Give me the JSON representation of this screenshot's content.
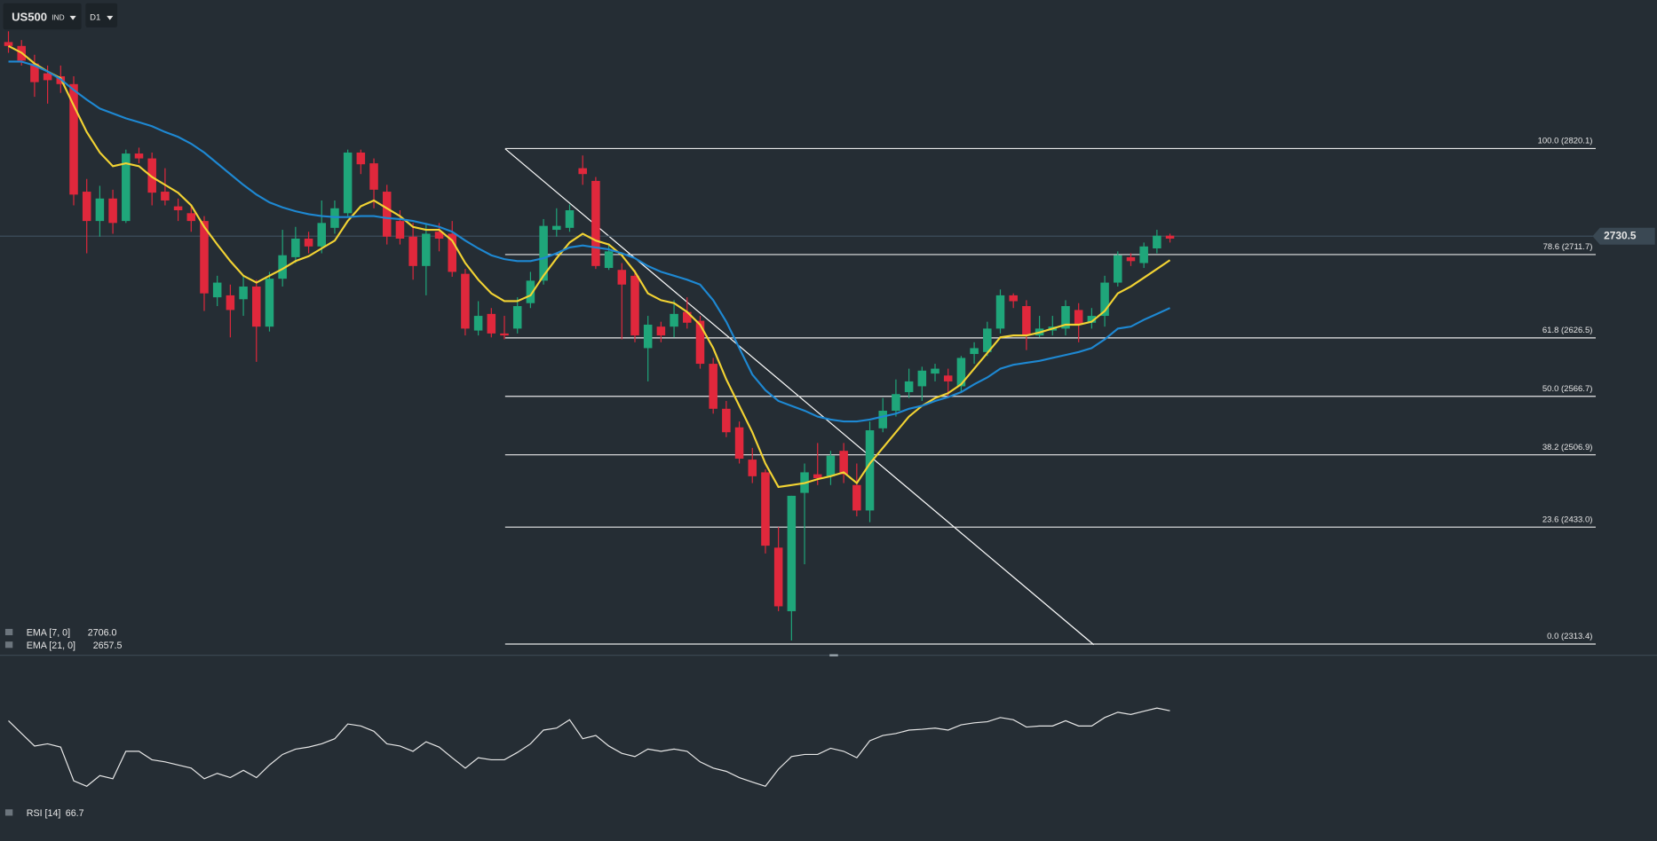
{
  "toolbar": {
    "symbol": "US500",
    "symbol_type": "IND",
    "timeframe": "D1"
  },
  "chart_data": [
    {
      "type": "candlestick",
      "up_color": "#1fa67a",
      "down_color": "#e0283c",
      "ylim": [
        2303,
        2972
      ],
      "open": [
        2929,
        2925,
        2907,
        2897,
        2894,
        2886,
        2776,
        2746,
        2769,
        2746,
        2815,
        2810,
        2776,
        2761,
        2754,
        2746,
        2668,
        2670,
        2666,
        2679,
        2638,
        2687,
        2709,
        2728,
        2720,
        2739,
        2754,
        2816,
        2805,
        2776,
        2746,
        2730,
        2700,
        2735,
        2733,
        2692,
        2634,
        2651,
        2631,
        2636,
        2662,
        2685,
        2737,
        2739,
        2800,
        2787,
        2698,
        2696,
        2690,
        2616,
        2638,
        2638,
        2653,
        2644,
        2600,
        2554,
        2535,
        2502,
        2489,
        2412,
        2347,
        2468,
        2487,
        2485,
        2511,
        2476,
        2450,
        2534,
        2552,
        2571,
        2577,
        2590,
        2588,
        2577,
        2610,
        2612,
        2636,
        2670,
        2659,
        2629,
        2634,
        2636,
        2655,
        2642,
        2649,
        2683,
        2709,
        2703,
        2718,
        2731
      ],
      "high": [
        2940,
        2931,
        2916,
        2905,
        2905,
        2894,
        2789,
        2782,
        2778,
        2819,
        2821,
        2816,
        2800,
        2769,
        2761,
        2751,
        2690,
        2681,
        2690,
        2686,
        2694,
        2737,
        2740,
        2735,
        2767,
        2767,
        2819,
        2819,
        2810,
        2783,
        2757,
        2744,
        2744,
        2744,
        2746,
        2697,
        2664,
        2657,
        2649,
        2668,
        2694,
        2748,
        2759,
        2763,
        2813,
        2791,
        2722,
        2703,
        2696,
        2649,
        2643,
        2665,
        2668,
        2649,
        2606,
        2562,
        2541,
        2514,
        2492,
        2433,
        2465,
        2498,
        2519,
        2511,
        2519,
        2498,
        2541,
        2565,
        2584,
        2595,
        2597,
        2600,
        2595,
        2608,
        2622,
        2643,
        2676,
        2672,
        2665,
        2649,
        2649,
        2665,
        2662,
        2657,
        2690,
        2715,
        2713,
        2724,
        2737,
        2733
      ],
      "low": [
        2918,
        2905,
        2873,
        2866,
        2877,
        2762,
        2713,
        2730,
        2733,
        2744,
        2805,
        2762,
        2762,
        2746,
        2735,
        2654,
        2659,
        2627,
        2649,
        2602,
        2633,
        2679,
        2703,
        2713,
        2713,
        2733,
        2751,
        2794,
        2759,
        2722,
        2722,
        2686,
        2670,
        2715,
        2689,
        2629,
        2629,
        2627,
        2625,
        2631,
        2657,
        2681,
        2730,
        2735,
        2783,
        2697,
        2696,
        2625,
        2622,
        2582,
        2622,
        2627,
        2636,
        2595,
        2549,
        2525,
        2498,
        2478,
        2406,
        2347,
        2317,
        2395,
        2476,
        2476,
        2478,
        2444,
        2438,
        2530,
        2546,
        2565,
        2562,
        2582,
        2565,
        2571,
        2600,
        2608,
        2631,
        2657,
        2614,
        2627,
        2629,
        2629,
        2622,
        2636,
        2638,
        2679,
        2700,
        2698,
        2713,
        2724
      ],
      "close": [
        2925,
        2910,
        2888,
        2890,
        2886,
        2773,
        2746,
        2769,
        2744,
        2815,
        2810,
        2775,
        2767,
        2757,
        2746,
        2672,
        2683,
        2655,
        2679,
        2638,
        2687,
        2711,
        2728,
        2720,
        2744,
        2759,
        2816,
        2804,
        2778,
        2730,
        2728,
        2700,
        2733,
        2728,
        2694,
        2636,
        2649,
        2631,
        2629,
        2659,
        2685,
        2741,
        2741,
        2757,
        2794,
        2700,
        2715,
        2681,
        2629,
        2640,
        2629,
        2651,
        2642,
        2600,
        2554,
        2530,
        2503,
        2485,
        2414,
        2352,
        2465,
        2489,
        2483,
        2506,
        2487,
        2450,
        2532,
        2552,
        2569,
        2582,
        2593,
        2595,
        2582,
        2606,
        2616,
        2636,
        2670,
        2664,
        2629,
        2636,
        2638,
        2659,
        2640,
        2649,
        2683,
        2711,
        2705,
        2720,
        2731,
        2728
      ],
      "series": [
        {
          "name": "EMA [7, 0]",
          "color": "#f2d333",
          "last_label": "2706.0",
          "values": [
            2925,
            2918,
            2907,
            2899,
            2892,
            2864,
            2837,
            2816,
            2802,
            2805,
            2802,
            2791,
            2783,
            2775,
            2762,
            2740,
            2722,
            2705,
            2690,
            2683,
            2690,
            2697,
            2705,
            2710,
            2718,
            2726,
            2746,
            2761,
            2767,
            2759,
            2751,
            2740,
            2737,
            2737,
            2726,
            2703,
            2686,
            2672,
            2664,
            2664,
            2670,
            2690,
            2708,
            2724,
            2733,
            2726,
            2722,
            2711,
            2694,
            2672,
            2665,
            2662,
            2653,
            2640,
            2616,
            2584,
            2557,
            2530,
            2498,
            2474,
            2476,
            2478,
            2482,
            2485,
            2489,
            2478,
            2498,
            2514,
            2530,
            2546,
            2557,
            2565,
            2570,
            2579,
            2595,
            2611,
            2627,
            2629,
            2629,
            2632,
            2636,
            2640,
            2640,
            2643,
            2654,
            2672,
            2679,
            2688,
            2697,
            2706
          ]
        },
        {
          "name": "EMA [21, 0]",
          "color": "#1e88d2",
          "last_label": "2657.5",
          "values": [
            2909,
            2909,
            2905,
            2899,
            2891,
            2880,
            2870,
            2861,
            2856,
            2851,
            2847,
            2843,
            2837,
            2832,
            2825,
            2816,
            2805,
            2794,
            2783,
            2773,
            2765,
            2760,
            2756,
            2753,
            2751,
            2750,
            2750,
            2751,
            2751,
            2749,
            2748,
            2746,
            2743,
            2740,
            2735,
            2726,
            2718,
            2711,
            2707,
            2705,
            2705,
            2708,
            2713,
            2719,
            2721,
            2719,
            2717,
            2713,
            2708,
            2700,
            2694,
            2690,
            2686,
            2681,
            2665,
            2643,
            2616,
            2589,
            2573,
            2562,
            2557,
            2552,
            2546,
            2543,
            2541,
            2541,
            2543,
            2546,
            2549,
            2554,
            2557,
            2562,
            2566,
            2571,
            2579,
            2586,
            2595,
            2599,
            2601,
            2603,
            2606,
            2609,
            2612,
            2616,
            2625,
            2636,
            2638,
            2645,
            2651,
            2657
          ]
        }
      ],
      "fib_levels": [
        {
          "value": 2820.1,
          "label": "100.0 (2820.1)"
        },
        {
          "value": 2711.7,
          "label": "78.6 (2711.7)"
        },
        {
          "value": 2626.5,
          "label": "61.8 (2626.5)"
        },
        {
          "value": 2566.7,
          "label": "50.0 (2566.7)"
        },
        {
          "value": 2506.9,
          "label": "38.2 (2506.9)"
        },
        {
          "value": 2433.0,
          "label": "23.6 (2433.0)"
        },
        {
          "value": 2313.4,
          "label": "0.0 (2313.4)"
        }
      ],
      "last_price": 2730.5
    },
    {
      "type": "line",
      "name": "RSI [14]",
      "color": "#e8e8e8",
      "ylim": [
        0,
        100
      ],
      "values": [
        61.3,
        54.3,
        47.4,
        48.6,
        46.8,
        28.3,
        25.4,
        31.2,
        29.5,
        44.5,
        44.5,
        39.9,
        38.7,
        37.0,
        35.3,
        29.5,
        32.4,
        30.1,
        34.1,
        30.1,
        37.0,
        42.8,
        45.7,
        46.8,
        48.6,
        51.4,
        59.5,
        58.4,
        55.5,
        48.6,
        47.4,
        44.5,
        49.7,
        46.8,
        41.0,
        35.3,
        41.0,
        39.9,
        39.9,
        43.9,
        48.6,
        56.1,
        57.2,
        61.8,
        51.4,
        53.2,
        47.4,
        43.4,
        41.6,
        45.7,
        44.5,
        45.7,
        44.5,
        38.7,
        35.3,
        33.5,
        30.1,
        27.7,
        25.4,
        34.7,
        41.6,
        42.8,
        42.8,
        46.2,
        44.5,
        41.0,
        50.3,
        53.2,
        54.3,
        56.1,
        56.6,
        57.2,
        56.1,
        59.0,
        60.1,
        60.7,
        63.0,
        61.8,
        57.8,
        58.4,
        58.4,
        61.3,
        58.4,
        58.4,
        63.0,
        65.9,
        64.7,
        66.5,
        68.2,
        66.7
      ]
    }
  ]
}
